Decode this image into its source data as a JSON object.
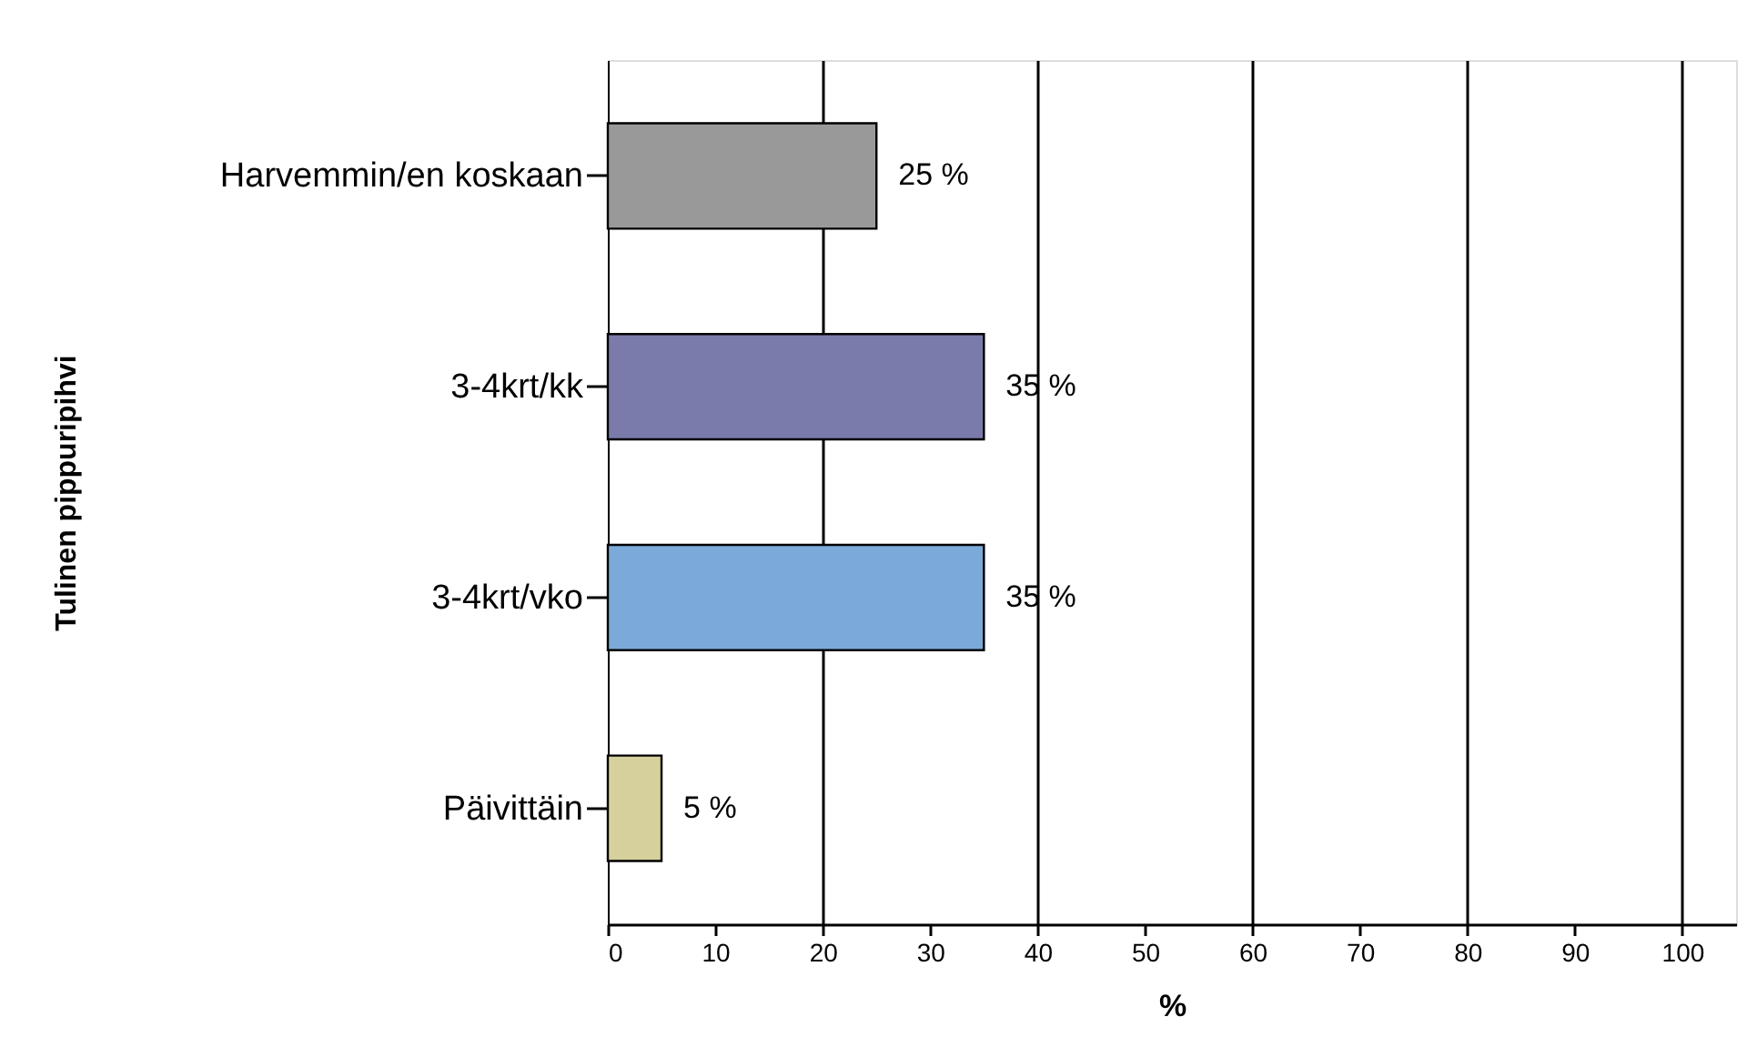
{
  "chart_data": {
    "type": "bar",
    "orientation": "horizontal",
    "categories": [
      "Harvemmin/en koskaan",
      "3-4krt/kk",
      "3-4krt/vko",
      "Päivittäin"
    ],
    "values": [
      25,
      35,
      35,
      5
    ],
    "colors": [
      "#999999",
      "#7b7bab",
      "#7baad8",
      "#d6d09c"
    ],
    "value_labels": [
      "25 %",
      "35 %",
      "35 %",
      "5 %"
    ],
    "xlabel": "%",
    "ylabel": "Tulinen pippuripihvi",
    "xlim": [
      0,
      105
    ],
    "xticks": [
      0,
      10,
      20,
      30,
      40,
      50,
      60,
      70,
      80,
      90,
      100
    ],
    "grid": "x",
    "legend": false
  }
}
